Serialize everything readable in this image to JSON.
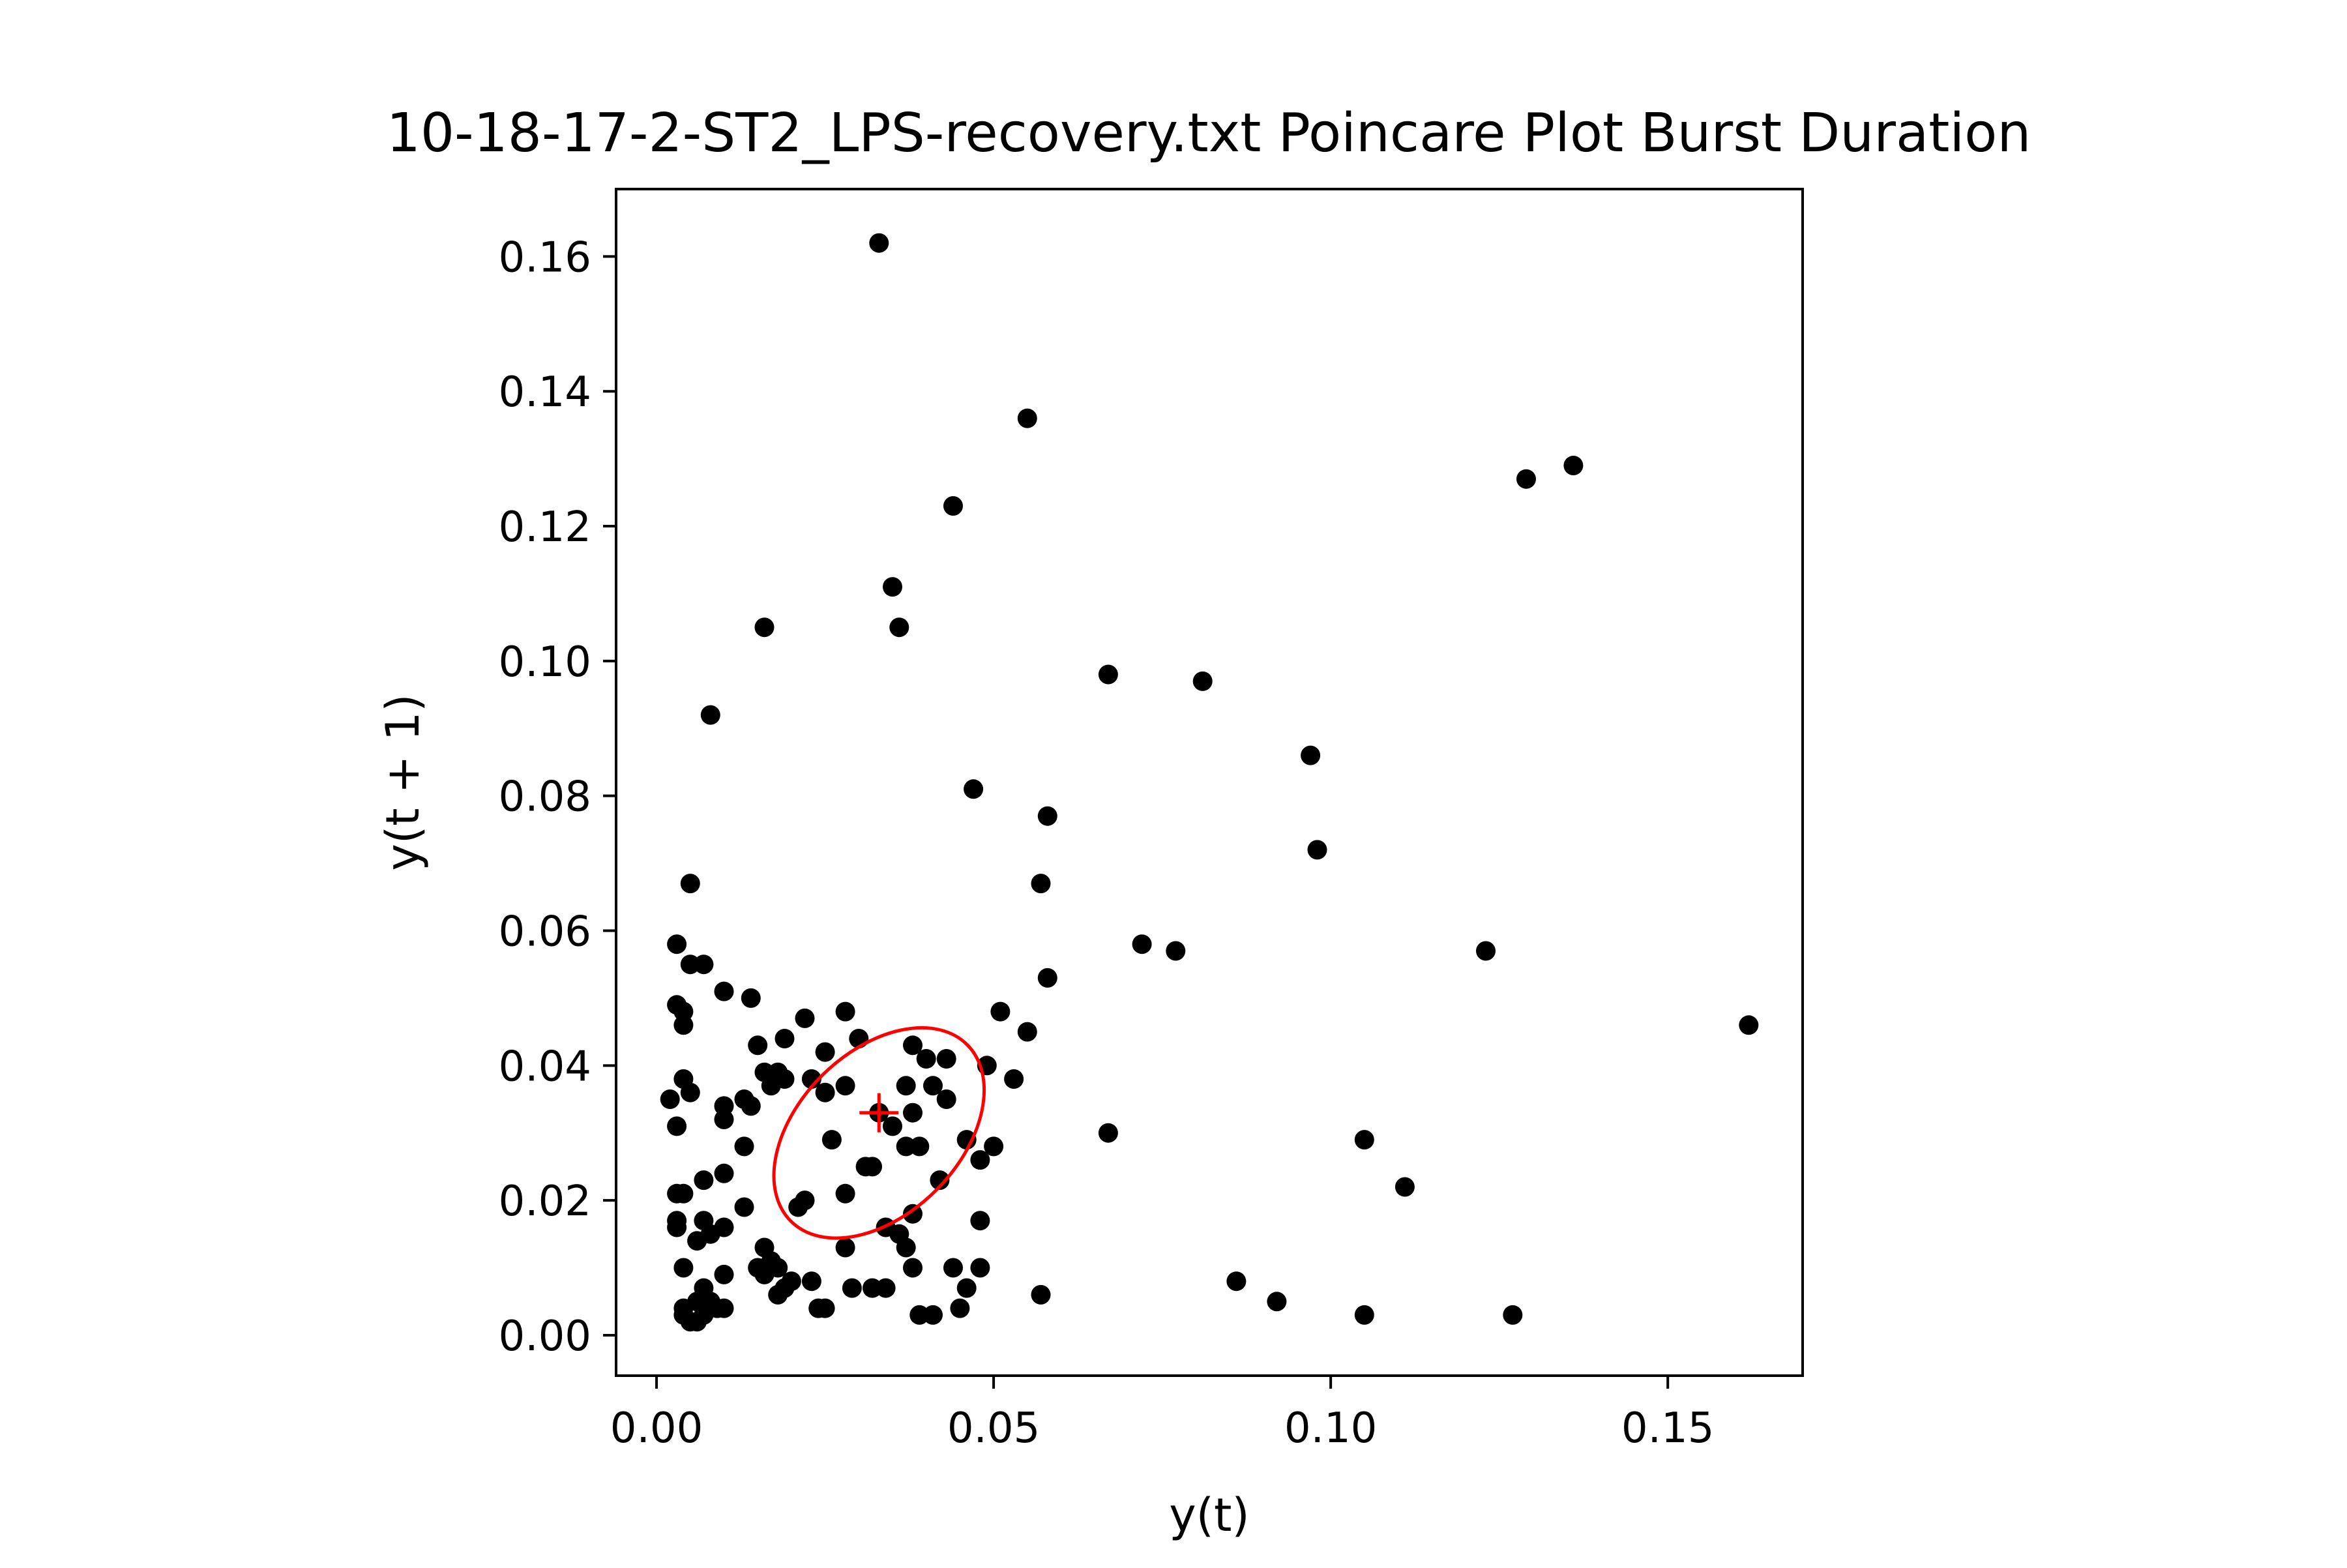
{
  "chart_data": {
    "type": "scatter",
    "title": "10-18-17-2-ST2_LPS-recovery.txt Poincare Plot Burst Duration",
    "xlabel": "y(t)",
    "ylabel": "y(t + 1)",
    "xlim": [
      -0.006,
      0.17
    ],
    "ylim": [
      -0.006,
      0.17
    ],
    "xticks": [
      0.0,
      0.05,
      0.1,
      0.15
    ],
    "xtick_labels": [
      "0.00",
      "0.05",
      "0.10",
      "0.15"
    ],
    "yticks": [
      0.0,
      0.02,
      0.04,
      0.06,
      0.08,
      0.1,
      0.12,
      0.14,
      0.16
    ],
    "ytick_labels": [
      "0.00",
      "0.02",
      "0.04",
      "0.06",
      "0.08",
      "0.10",
      "0.12",
      "0.14",
      "0.16"
    ],
    "grid": false,
    "point_color": "#000000",
    "overlay_color": "#ff0000",
    "centroid": {
      "x": 0.033,
      "y": 0.033
    },
    "ellipse": {
      "cx": 0.033,
      "cy": 0.03,
      "a": 0.0185,
      "b": 0.012,
      "angle_deg": 45
    },
    "points": [
      [
        0.033,
        0.162
      ],
      [
        0.055,
        0.136
      ],
      [
        0.044,
        0.123
      ],
      [
        0.129,
        0.127
      ],
      [
        0.136,
        0.129
      ],
      [
        0.035,
        0.111
      ],
      [
        0.016,
        0.105
      ],
      [
        0.036,
        0.105
      ],
      [
        0.067,
        0.098
      ],
      [
        0.081,
        0.097
      ],
      [
        0.008,
        0.092
      ],
      [
        0.097,
        0.086
      ],
      [
        0.047,
        0.081
      ],
      [
        0.058,
        0.077
      ],
      [
        0.098,
        0.072
      ],
      [
        0.005,
        0.067
      ],
      [
        0.057,
        0.067
      ],
      [
        0.003,
        0.058
      ],
      [
        0.072,
        0.058
      ],
      [
        0.077,
        0.057
      ],
      [
        0.123,
        0.057
      ],
      [
        0.005,
        0.055
      ],
      [
        0.007,
        0.055
      ],
      [
        0.058,
        0.053
      ],
      [
        0.01,
        0.051
      ],
      [
        0.014,
        0.05
      ],
      [
        0.003,
        0.049
      ],
      [
        0.004,
        0.048
      ],
      [
        0.028,
        0.048
      ],
      [
        0.051,
        0.048
      ],
      [
        0.022,
        0.047
      ],
      [
        0.004,
        0.046
      ],
      [
        0.162,
        0.046
      ],
      [
        0.055,
        0.045
      ],
      [
        0.019,
        0.044
      ],
      [
        0.03,
        0.044
      ],
      [
        0.015,
        0.043
      ],
      [
        0.038,
        0.043
      ],
      [
        0.025,
        0.042
      ],
      [
        0.04,
        0.041
      ],
      [
        0.043,
        0.041
      ],
      [
        0.049,
        0.04
      ],
      [
        0.016,
        0.039
      ],
      [
        0.018,
        0.039
      ],
      [
        0.004,
        0.038
      ],
      [
        0.019,
        0.038
      ],
      [
        0.023,
        0.038
      ],
      [
        0.053,
        0.038
      ],
      [
        0.017,
        0.037
      ],
      [
        0.028,
        0.037
      ],
      [
        0.037,
        0.037
      ],
      [
        0.041,
        0.037
      ],
      [
        0.005,
        0.036
      ],
      [
        0.025,
        0.036
      ],
      [
        0.002,
        0.035
      ],
      [
        0.013,
        0.035
      ],
      [
        0.043,
        0.035
      ],
      [
        0.01,
        0.034
      ],
      [
        0.014,
        0.034
      ],
      [
        0.033,
        0.033
      ],
      [
        0.038,
        0.033
      ],
      [
        0.01,
        0.032
      ],
      [
        0.003,
        0.031
      ],
      [
        0.035,
        0.031
      ],
      [
        0.067,
        0.03
      ],
      [
        0.026,
        0.029
      ],
      [
        0.046,
        0.029
      ],
      [
        0.105,
        0.029
      ],
      [
        0.013,
        0.028
      ],
      [
        0.037,
        0.028
      ],
      [
        0.039,
        0.028
      ],
      [
        0.05,
        0.028
      ],
      [
        0.048,
        0.026
      ],
      [
        0.031,
        0.025
      ],
      [
        0.032,
        0.025
      ],
      [
        0.01,
        0.024
      ],
      [
        0.007,
        0.023
      ],
      [
        0.042,
        0.023
      ],
      [
        0.111,
        0.022
      ],
      [
        0.004,
        0.021
      ],
      [
        0.028,
        0.021
      ],
      [
        0.003,
        0.021
      ],
      [
        0.022,
        0.02
      ],
      [
        0.013,
        0.019
      ],
      [
        0.021,
        0.019
      ],
      [
        0.038,
        0.018
      ],
      [
        0.003,
        0.017
      ],
      [
        0.007,
        0.017
      ],
      [
        0.048,
        0.017
      ],
      [
        0.003,
        0.016
      ],
      [
        0.01,
        0.016
      ],
      [
        0.034,
        0.016
      ],
      [
        0.008,
        0.015
      ],
      [
        0.036,
        0.015
      ],
      [
        0.006,
        0.014
      ],
      [
        0.016,
        0.013
      ],
      [
        0.028,
        0.013
      ],
      [
        0.037,
        0.013
      ],
      [
        0.017,
        0.011
      ],
      [
        0.004,
        0.01
      ],
      [
        0.015,
        0.01
      ],
      [
        0.018,
        0.01
      ],
      [
        0.038,
        0.01
      ],
      [
        0.044,
        0.01
      ],
      [
        0.048,
        0.01
      ],
      [
        0.01,
        0.009
      ],
      [
        0.016,
        0.009
      ],
      [
        0.02,
        0.008
      ],
      [
        0.023,
        0.008
      ],
      [
        0.086,
        0.008
      ],
      [
        0.007,
        0.007
      ],
      [
        0.019,
        0.007
      ],
      [
        0.029,
        0.007
      ],
      [
        0.032,
        0.007
      ],
      [
        0.034,
        0.007
      ],
      [
        0.046,
        0.007
      ],
      [
        0.018,
        0.006
      ],
      [
        0.057,
        0.006
      ],
      [
        0.006,
        0.005
      ],
      [
        0.008,
        0.005
      ],
      [
        0.092,
        0.005
      ],
      [
        0.004,
        0.004
      ],
      [
        0.009,
        0.004
      ],
      [
        0.01,
        0.004
      ],
      [
        0.024,
        0.004
      ],
      [
        0.025,
        0.004
      ],
      [
        0.045,
        0.004
      ],
      [
        0.004,
        0.003
      ],
      [
        0.007,
        0.003
      ],
      [
        0.039,
        0.003
      ],
      [
        0.041,
        0.003
      ],
      [
        0.105,
        0.003
      ],
      [
        0.127,
        0.003
      ],
      [
        0.005,
        0.002
      ],
      [
        0.006,
        0.002
      ]
    ]
  }
}
